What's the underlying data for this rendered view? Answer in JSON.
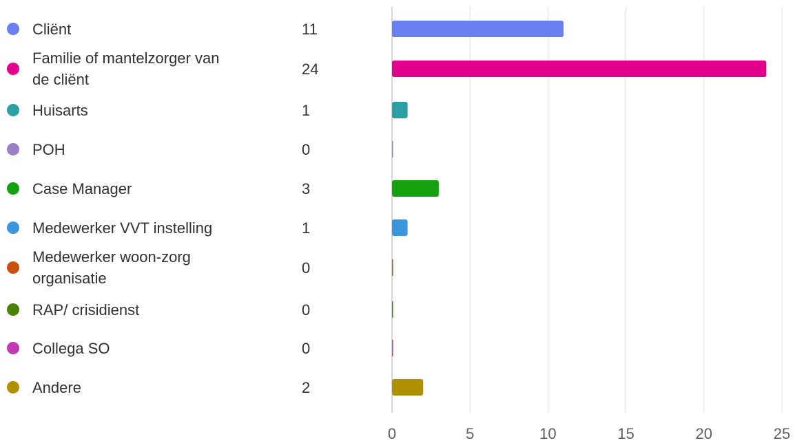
{
  "chart_data": {
    "type": "bar",
    "orientation": "horizontal",
    "grid": true,
    "xlim": [
      0,
      25
    ],
    "xticks": [
      0,
      5,
      10,
      15,
      20,
      25
    ],
    "categories": [
      {
        "label": "Cliënt",
        "value": 11,
        "color": "#6a7ff0"
      },
      {
        "label": "Familie of mantelzorger van de cliënt",
        "value": 24,
        "color": "#e3008c"
      },
      {
        "label": "Huisarts",
        "value": 1,
        "color": "#2aa0a4"
      },
      {
        "label": "POH",
        "value": 0,
        "color": "#9b7fc6"
      },
      {
        "label": "Case Manager",
        "value": 3,
        "color": "#13a10e"
      },
      {
        "label": "Medewerker VVT instelling",
        "value": 1,
        "color": "#3a96dd"
      },
      {
        "label": "Medewerker woon-zorg organisatie",
        "value": 0,
        "color": "#ca5010"
      },
      {
        "label": "RAP/ crisidienst",
        "value": 0,
        "color": "#498205"
      },
      {
        "label": "Collega SO",
        "value": 0,
        "color": "#c239b3"
      },
      {
        "label": "Andere",
        "value": 2,
        "color": "#b19000"
      }
    ]
  }
}
